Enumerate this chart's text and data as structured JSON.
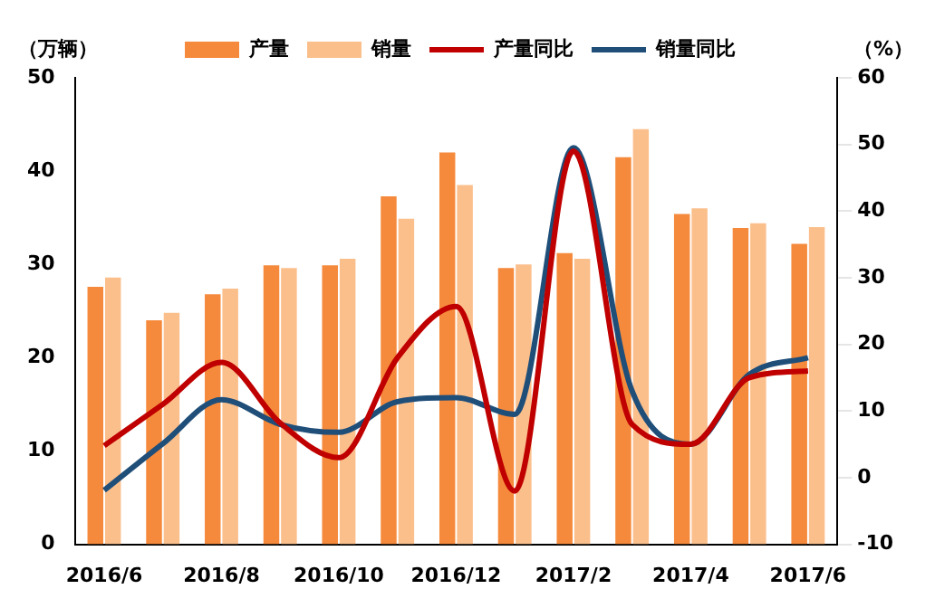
{
  "chart_data": {
    "type": "bar",
    "ylabel": "（万辆）",
    "y2label": "（%）",
    "categories": [
      "2016/6",
      null,
      "2016/8",
      null,
      "2016/10",
      null,
      "2016/12",
      null,
      "2017/2",
      null,
      "2017/4",
      null,
      "2017/6"
    ],
    "series": [
      {
        "name": "产量",
        "color": "#f58a3c",
        "values": [
          27.6,
          24.0,
          26.8,
          29.9,
          29.9,
          37.3,
          42.0,
          29.6,
          31.2,
          41.5,
          35.4,
          33.9,
          32.2
        ]
      },
      {
        "name": "销量",
        "color": "#fbbf8c",
        "values": [
          28.6,
          24.8,
          27.4,
          29.6,
          30.6,
          34.9,
          38.5,
          30.0,
          30.6,
          44.5,
          36.0,
          34.4,
          34.0
        ]
      },
      {
        "name": "产量同比",
        "type": "line",
        "axis": "y2",
        "color": "#c00000",
        "values": [
          4.8,
          11,
          17.3,
          8.2,
          3,
          18,
          25.7,
          -2,
          49,
          8,
          5,
          15,
          16
        ]
      },
      {
        "name": "销量同比",
        "type": "line",
        "axis": "y2",
        "color": "#1f4e79",
        "values": [
          -1.9,
          5.1,
          11.7,
          8,
          6.8,
          11.4,
          12,
          9.5,
          49.5,
          13,
          5,
          15.5,
          18
        ]
      }
    ],
    "ylim": [
      0,
      50
    ],
    "yticks": [
      0,
      10,
      20,
      30,
      40,
      50
    ],
    "y2lim": [
      -10,
      60
    ],
    "y2ticks": [
      -10,
      0,
      10,
      20,
      30,
      40,
      50,
      60
    ],
    "grid": false,
    "legend": "top",
    "marker": "none",
    "line_style": "solid"
  }
}
